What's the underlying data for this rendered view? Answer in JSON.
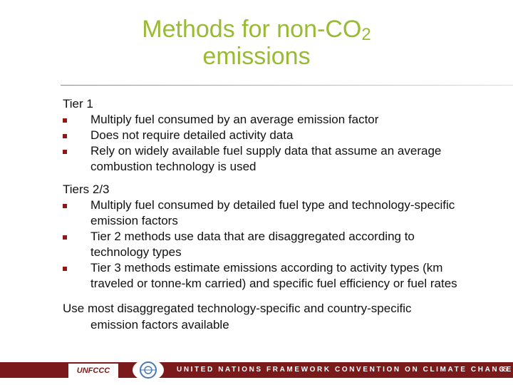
{
  "title": {
    "main": "Methods for non-CO",
    "sub": "2",
    "line2": "emissions"
  },
  "sections": [
    {
      "heading": "Tier 1",
      "bullets": [
        "Multiply fuel consumed by an average emission factor",
        "Does not require detailed activity data",
        "Rely on widely available fuel supply data that assume an average combustion technology is used"
      ]
    },
    {
      "heading": "Tiers 2/3",
      "bullets": [
        "Multiply fuel consumed by detailed fuel type and technology-specific emission factors",
        "Tier 2 methods use data that are disaggregated according to technology types",
        "Tier 3 methods estimate emissions according to activity types (km traveled or tonne-km carried) and specific fuel efficiency or fuel rates"
      ]
    }
  ],
  "closing": "Use most disaggregated technology-specific and country-specific emission factors available",
  "footer": {
    "logo": "UNFCCC",
    "banner": "UNITED NATIONS FRAMEWORK CONVENTION ON CLIMATE CHANGE",
    "page": "35"
  }
}
